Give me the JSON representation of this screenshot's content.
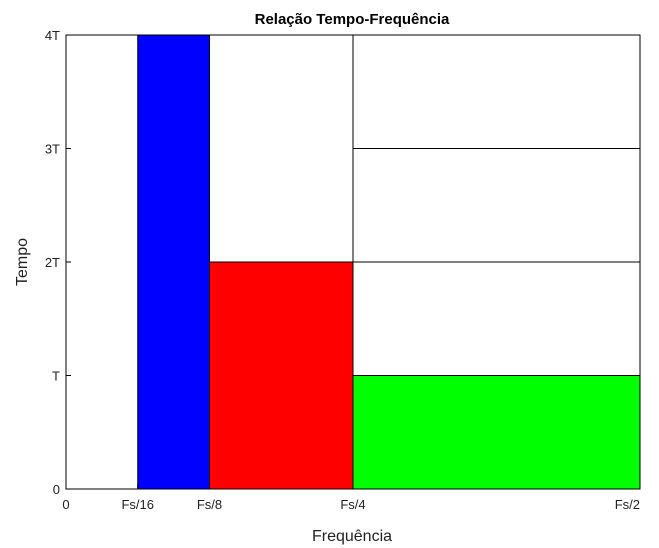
{
  "chart_data": {
    "type": "tiling",
    "title": "Relação Tempo-Frequência",
    "xlabel": "Frequência",
    "ylabel": "Tempo",
    "xlim": [
      0,
      0.5
    ],
    "ylim": [
      0,
      4
    ],
    "x_ticks": [
      {
        "value": 0,
        "label": "0"
      },
      {
        "value": 0.0625,
        "label": "Fs/16"
      },
      {
        "value": 0.125,
        "label": "Fs/8"
      },
      {
        "value": 0.25,
        "label": "Fs/4"
      },
      {
        "value": 0.5,
        "label": "Fs/2"
      }
    ],
    "y_ticks": [
      {
        "value": 0,
        "label": "0"
      },
      {
        "value": 1,
        "label": "T"
      },
      {
        "value": 2,
        "label": "2T"
      },
      {
        "value": 3,
        "label": "3T"
      },
      {
        "value": 4,
        "label": "4T"
      }
    ],
    "tiles": [
      {
        "name": "tile-fs16-fs8-full",
        "x0": 0.0625,
        "x1": 0.125,
        "y0": 0,
        "y1": 4,
        "color": "#0000ff"
      },
      {
        "name": "tile-fs8-fs4-lower",
        "x0": 0.125,
        "x1": 0.25,
        "y0": 0,
        "y1": 2,
        "color": "#ff0000"
      },
      {
        "name": "tile-fs8-fs4-upper",
        "x0": 0.125,
        "x1": 0.25,
        "y0": 2,
        "y1": 4,
        "color": "#ffffff"
      },
      {
        "name": "tile-fs4-fs2-band-1",
        "x0": 0.25,
        "x1": 0.5,
        "y0": 0,
        "y1": 1,
        "color": "#00ff00"
      },
      {
        "name": "tile-fs4-fs2-band-2",
        "x0": 0.25,
        "x1": 0.5,
        "y0": 1,
        "y1": 2,
        "color": "#ffffff"
      },
      {
        "name": "tile-fs4-fs2-band-3",
        "x0": 0.25,
        "x1": 0.5,
        "y0": 2,
        "y1": 3,
        "color": "#ffffff"
      },
      {
        "name": "tile-fs4-fs2-band-4",
        "x0": 0.25,
        "x1": 0.5,
        "y0": 3,
        "y1": 4,
        "color": "#ffffff"
      }
    ],
    "grid": false,
    "legend": "none"
  }
}
